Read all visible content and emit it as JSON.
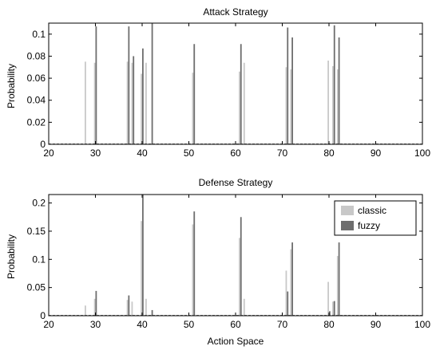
{
  "chart_data": [
    {
      "type": "bar",
      "title": "Attack Strategy",
      "xlabel": "",
      "ylabel": "Probability",
      "xlim": [
        20,
        100
      ],
      "ylim": [
        0,
        0.11
      ],
      "xticks": [
        "20",
        "30",
        "40",
        "50",
        "60",
        "70",
        "80",
        "90",
        "100"
      ],
      "yticks": [
        "0",
        "0.02",
        "0.04",
        "0.06",
        "0.08",
        "0.1"
      ],
      "series": [
        {
          "color": "#c8c8c8",
          "points": [
            [
              28,
              0.075
            ],
            [
              30,
              0.074
            ],
            [
              37,
              0.075
            ],
            [
              38,
              0.074
            ],
            [
              40,
              0.064
            ],
            [
              41,
              0.074
            ],
            [
              51,
              0.065
            ],
            [
              61,
              0.066
            ],
            [
              62,
              0.074
            ],
            [
              71,
              0.07
            ],
            [
              72,
              0.068
            ],
            [
              80,
              0.076
            ],
            [
              81,
              0.071
            ],
            [
              82,
              0.068
            ]
          ]
        },
        {
          "color": "#6e6e6e",
          "points": [
            [
              30,
              0.107
            ],
            [
              37,
              0.107
            ],
            [
              38,
              0.08
            ],
            [
              40,
              0.087
            ],
            [
              42,
              0.11
            ],
            [
              51,
              0.091
            ],
            [
              61,
              0.091
            ],
            [
              71,
              0.106
            ],
            [
              72,
              0.097
            ],
            [
              81,
              0.108
            ],
            [
              82,
              0.097
            ]
          ]
        }
      ],
      "legend": null
    },
    {
      "type": "bar",
      "title": "Defense Strategy",
      "xlabel": "Action Space",
      "ylabel": "Probability",
      "xlim": [
        20,
        100
      ],
      "ylim": [
        0,
        0.215
      ],
      "xticks": [
        "20",
        "30",
        "40",
        "50",
        "60",
        "70",
        "80",
        "90",
        "100"
      ],
      "yticks": [
        "0",
        "0.05",
        "0.1",
        "0.15",
        "0.2"
      ],
      "series": [
        {
          "name": "classic",
          "color": "#c8c8c8",
          "points": [
            [
              28,
              0.018
            ],
            [
              30,
              0.03
            ],
            [
              37,
              0.028
            ],
            [
              38,
              0.025
            ],
            [
              40,
              0.168
            ],
            [
              41,
              0.03
            ],
            [
              51,
              0.162
            ],
            [
              61,
              0.138
            ],
            [
              62,
              0.03
            ],
            [
              71,
              0.08
            ],
            [
              72,
              0.118
            ],
            [
              80,
              0.06
            ],
            [
              81,
              0.025
            ],
            [
              82,
              0.106
            ]
          ]
        },
        {
          "name": "fuzzy",
          "color": "#6e6e6e",
          "points": [
            [
              30,
              0.044
            ],
            [
              37,
              0.036
            ],
            [
              40,
              0.215
            ],
            [
              42,
              0.01
            ],
            [
              51,
              0.185
            ],
            [
              61,
              0.175
            ],
            [
              71,
              0.043
            ],
            [
              72,
              0.13
            ],
            [
              80,
              0.008
            ],
            [
              81,
              0.026
            ],
            [
              82,
              0.13
            ]
          ]
        }
      ],
      "legend": "top-right"
    }
  ]
}
